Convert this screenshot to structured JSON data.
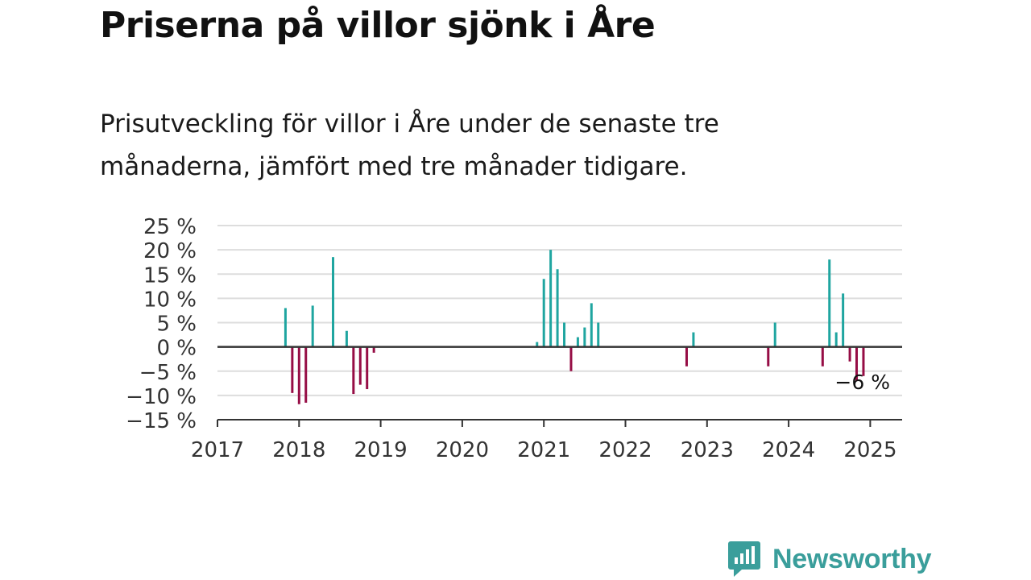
{
  "title": "Priserna på villor sjönk i Åre",
  "subtitle": "Prisutveckling för villor i Åre under de senaste tre månaderna, jämfört med tre månader tidigare.",
  "brand": {
    "name": "Newsworthy",
    "color": "#3a9e9b"
  },
  "chart_data": {
    "type": "bar",
    "colors": {
      "positive": "#1fa5a0",
      "negative": "#960d45",
      "zero_line": "#333333",
      "grid": "#dddddd"
    },
    "y_ticks": [
      "25 %",
      "20 %",
      "15 %",
      "10 %",
      "5 %",
      "0 %",
      "−5 %",
      "−10 %",
      "−15 %"
    ],
    "x_ticks": [
      "2017",
      "2018",
      "2019",
      "2020",
      "2021",
      "2022",
      "2023",
      "2024",
      "2025"
    ],
    "ylim": [
      -15,
      25
    ],
    "x_start": "2017-01",
    "annotation": {
      "label": "−6 %",
      "x": "2024-12"
    },
    "series": [
      {
        "values": [
          {
            "x": "2017-11",
            "y": 8
          },
          {
            "x": "2017-12",
            "y": -9.5
          },
          {
            "x": "2018-01",
            "y": -11.8
          },
          {
            "x": "2018-02",
            "y": -11.5
          },
          {
            "x": "2018-03",
            "y": 8.5
          },
          {
            "x": "2018-06",
            "y": 18.5
          },
          {
            "x": "2018-08",
            "y": 3.3
          },
          {
            "x": "2018-09",
            "y": -9.7
          },
          {
            "x": "2018-10",
            "y": -7.8
          },
          {
            "x": "2018-11",
            "y": -8.7
          },
          {
            "x": "2018-12",
            "y": -1.2
          },
          {
            "x": "2020-12",
            "y": 1
          },
          {
            "x": "2021-01",
            "y": 14
          },
          {
            "x": "2021-02",
            "y": 20
          },
          {
            "x": "2021-03",
            "y": 16
          },
          {
            "x": "2021-04",
            "y": 5
          },
          {
            "x": "2021-05",
            "y": -5
          },
          {
            "x": "2021-06",
            "y": 2
          },
          {
            "x": "2021-07",
            "y": 4
          },
          {
            "x": "2021-08",
            "y": 9
          },
          {
            "x": "2021-09",
            "y": 5
          },
          {
            "x": "2022-10",
            "y": -4
          },
          {
            "x": "2022-11",
            "y": 3
          },
          {
            "x": "2023-10",
            "y": -4
          },
          {
            "x": "2023-11",
            "y": 5
          },
          {
            "x": "2024-06",
            "y": -4
          },
          {
            "x": "2024-07",
            "y": 18
          },
          {
            "x": "2024-08",
            "y": 3
          },
          {
            "x": "2024-09",
            "y": 11
          },
          {
            "x": "2024-10",
            "y": -3
          },
          {
            "x": "2024-11",
            "y": -7
          },
          {
            "x": "2024-12",
            "y": -6
          }
        ]
      }
    ]
  }
}
